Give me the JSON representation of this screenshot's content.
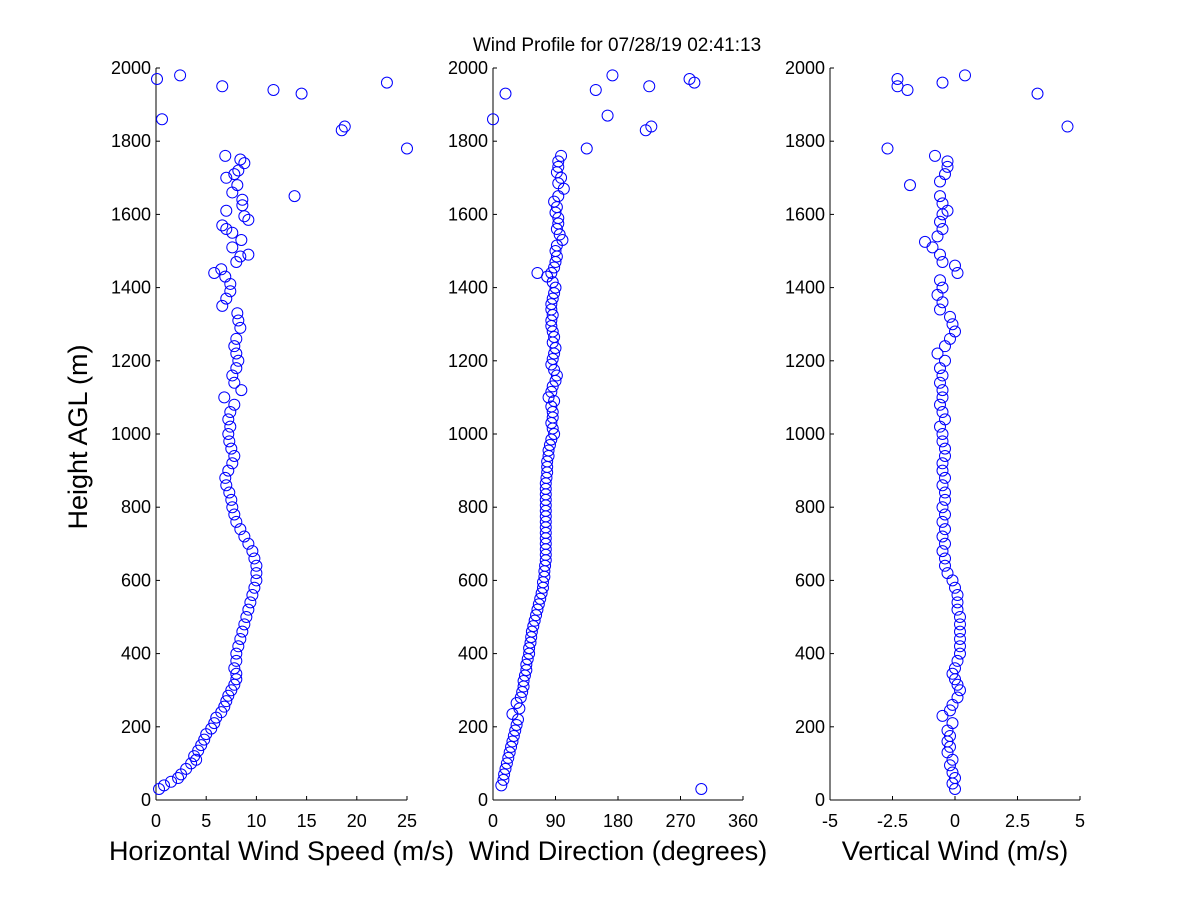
{
  "figure": {
    "title": "Wind Profile for  07/28/19 02:41:13",
    "ylabel": "Height AGL (m)"
  },
  "chart_data": [
    {
      "type": "scatter",
      "xlabel": "Horizontal Wind Speed (m/s)",
      "ylabel": "Height AGL (m)",
      "xlim": [
        0,
        25
      ],
      "ylim": [
        0,
        2000
      ],
      "xticks": [
        0,
        5,
        10,
        15,
        20,
        25
      ],
      "xtick_labels": [
        "0",
        "5",
        "10",
        "15",
        "20",
        "25"
      ],
      "yticks": [
        0,
        200,
        400,
        600,
        800,
        1000,
        1200,
        1400,
        1600,
        1800,
        2000
      ],
      "ytick_labels": [
        "0",
        "200",
        "400",
        "600",
        "800",
        "1000",
        "1200",
        "1400",
        "1600",
        "1800",
        "2000"
      ],
      "grid": false,
      "marker_color": "#0000ff",
      "points": [
        [
          0.3,
          30
        ],
        [
          0.8,
          40
        ],
        [
          1.5,
          50
        ],
        [
          2.2,
          60
        ],
        [
          2.5,
          70
        ],
        [
          3,
          85
        ],
        [
          3.5,
          100
        ],
        [
          4,
          110
        ],
        [
          3.8,
          120
        ],
        [
          4.2,
          135
        ],
        [
          4.5,
          150
        ],
        [
          4.8,
          165
        ],
        [
          5,
          180
        ],
        [
          5.5,
          195
        ],
        [
          5.8,
          210
        ],
        [
          6,
          225
        ],
        [
          6.5,
          240
        ],
        [
          6.8,
          255
        ],
        [
          7,
          270
        ],
        [
          7.2,
          285
        ],
        [
          7.5,
          300
        ],
        [
          7.8,
          315
        ],
        [
          8,
          330
        ],
        [
          8,
          345
        ],
        [
          7.8,
          360
        ],
        [
          8,
          380
        ],
        [
          8,
          400
        ],
        [
          8.2,
          420
        ],
        [
          8.4,
          440
        ],
        [
          8.6,
          460
        ],
        [
          8.8,
          480
        ],
        [
          9,
          500
        ],
        [
          9.2,
          520
        ],
        [
          9.4,
          540
        ],
        [
          9.6,
          560
        ],
        [
          9.8,
          580
        ],
        [
          10,
          600
        ],
        [
          10,
          620
        ],
        [
          10,
          640
        ],
        [
          9.8,
          660
        ],
        [
          9.6,
          680
        ],
        [
          9.2,
          700
        ],
        [
          8.8,
          720
        ],
        [
          8.4,
          740
        ],
        [
          8,
          760
        ],
        [
          7.8,
          780
        ],
        [
          7.6,
          800
        ],
        [
          7.5,
          820
        ],
        [
          7.3,
          840
        ],
        [
          7,
          860
        ],
        [
          6.9,
          880
        ],
        [
          7.2,
          900
        ],
        [
          7.6,
          920
        ],
        [
          7.8,
          940
        ],
        [
          7.5,
          960
        ],
        [
          7.3,
          980
        ],
        [
          7.2,
          1000
        ],
        [
          7.4,
          1020
        ],
        [
          7.2,
          1040
        ],
        [
          7.4,
          1060
        ],
        [
          7.8,
          1080
        ],
        [
          6.8,
          1100
        ],
        [
          8.5,
          1120
        ],
        [
          7.8,
          1140
        ],
        [
          7.6,
          1160
        ],
        [
          8,
          1180
        ],
        [
          8.2,
          1200
        ],
        [
          8,
          1220
        ],
        [
          7.8,
          1240
        ],
        [
          8,
          1260
        ],
        [
          8.4,
          1290
        ],
        [
          8.2,
          1310
        ],
        [
          8.1,
          1330
        ],
        [
          6.6,
          1350
        ],
        [
          7,
          1370
        ],
        [
          7.4,
          1390
        ],
        [
          7.4,
          1410
        ],
        [
          6.9,
          1430
        ],
        [
          5.8,
          1440
        ],
        [
          6.5,
          1450
        ],
        [
          8,
          1470
        ],
        [
          8.4,
          1485
        ],
        [
          9.2,
          1490
        ],
        [
          7.6,
          1510
        ],
        [
          8.5,
          1530
        ],
        [
          7.6,
          1550
        ],
        [
          7,
          1560
        ],
        [
          6.6,
          1570
        ],
        [
          9.2,
          1585
        ],
        [
          8.8,
          1595
        ],
        [
          7,
          1610
        ],
        [
          8.6,
          1625
        ],
        [
          8.6,
          1640
        ],
        [
          7.6,
          1660
        ],
        [
          13.8,
          1650
        ],
        [
          8.1,
          1680
        ],
        [
          7,
          1700
        ],
        [
          7.8,
          1710
        ],
        [
          8.2,
          1720
        ],
        [
          8.8,
          1740
        ],
        [
          8.4,
          1750
        ],
        [
          6.9,
          1760
        ],
        [
          25,
          1780
        ],
        [
          18.5,
          1830
        ],
        [
          18.8,
          1840
        ],
        [
          0.6,
          1860
        ],
        [
          14.5,
          1930
        ],
        [
          11.7,
          1940
        ],
        [
          6.6,
          1950
        ],
        [
          23,
          1960
        ],
        [
          0.1,
          1970
        ],
        [
          2.4,
          1980
        ]
      ]
    },
    {
      "type": "scatter",
      "xlabel": "Wind Direction (degrees)",
      "xlim": [
        0,
        360
      ],
      "ylim": [
        0,
        2000
      ],
      "xticks": [
        0,
        90,
        180,
        270,
        360
      ],
      "xtick_labels": [
        "0",
        "90",
        "180",
        "270",
        "360"
      ],
      "yticks": [
        0,
        200,
        400,
        600,
        800,
        1000,
        1200,
        1400,
        1600,
        1800,
        2000
      ],
      "ytick_labels": [
        "0",
        "200",
        "400",
        "600",
        "800",
        "1000",
        "1200",
        "1400",
        "1600",
        "1800",
        "2000"
      ],
      "grid": false,
      "marker_color": "#0000ff",
      "points": [
        [
          12,
          40
        ],
        [
          15,
          55
        ],
        [
          16,
          70
        ],
        [
          18,
          85
        ],
        [
          20,
          100
        ],
        [
          22,
          115
        ],
        [
          24,
          130
        ],
        [
          26,
          145
        ],
        [
          28,
          160
        ],
        [
          30,
          175
        ],
        [
          32,
          190
        ],
        [
          34,
          205
        ],
        [
          36,
          220
        ],
        [
          28,
          235
        ],
        [
          38,
          250
        ],
        [
          34,
          265
        ],
        [
          40,
          280
        ],
        [
          42,
          295
        ],
        [
          44,
          310
        ],
        [
          44,
          325
        ],
        [
          46,
          340
        ],
        [
          48,
          355
        ],
        [
          48,
          370
        ],
        [
          50,
          385
        ],
        [
          52,
          400
        ],
        [
          52,
          415
        ],
        [
          54,
          430
        ],
        [
          55,
          445
        ],
        [
          56,
          460
        ],
        [
          58,
          475
        ],
        [
          60,
          490
        ],
        [
          62,
          505
        ],
        [
          64,
          520
        ],
        [
          66,
          535
        ],
        [
          68,
          550
        ],
        [
          70,
          565
        ],
        [
          72,
          580
        ],
        [
          72,
          595
        ],
        [
          74,
          610
        ],
        [
          74,
          625
        ],
        [
          75,
          640
        ],
        [
          76,
          655
        ],
        [
          76,
          670
        ],
        [
          76,
          685
        ],
        [
          76,
          700
        ],
        [
          76,
          715
        ],
        [
          76,
          730
        ],
        [
          76,
          745
        ],
        [
          76,
          760
        ],
        [
          76,
          775
        ],
        [
          76,
          790
        ],
        [
          76,
          805
        ],
        [
          76,
          820
        ],
        [
          76,
          835
        ],
        [
          76,
          850
        ],
        [
          76,
          865
        ],
        [
          77,
          880
        ],
        [
          78,
          895
        ],
        [
          78,
          910
        ],
        [
          78,
          925
        ],
        [
          80,
          940
        ],
        [
          80,
          955
        ],
        [
          82,
          970
        ],
        [
          84,
          985
        ],
        [
          88,
          1000
        ],
        [
          86,
          1015
        ],
        [
          84,
          1030
        ],
        [
          86,
          1045
        ],
        [
          86,
          1060
        ],
        [
          84,
          1075
        ],
        [
          88,
          1090
        ],
        [
          80,
          1100
        ],
        [
          84,
          1115
        ],
        [
          86,
          1130
        ],
        [
          90,
          1145
        ],
        [
          92,
          1160
        ],
        [
          88,
          1175
        ],
        [
          84,
          1190
        ],
        [
          86,
          1205
        ],
        [
          88,
          1220
        ],
        [
          90,
          1235
        ],
        [
          86,
          1250
        ],
        [
          88,
          1265
        ],
        [
          86,
          1280
        ],
        [
          84,
          1295
        ],
        [
          84,
          1310
        ],
        [
          86,
          1325
        ],
        [
          84,
          1340
        ],
        [
          84,
          1355
        ],
        [
          86,
          1370
        ],
        [
          88,
          1385
        ],
        [
          90,
          1400
        ],
        [
          86,
          1415
        ],
        [
          78,
          1430
        ],
        [
          64,
          1440
        ],
        [
          84,
          1440
        ],
        [
          88,
          1455
        ],
        [
          90,
          1470
        ],
        [
          92,
          1485
        ],
        [
          90,
          1500
        ],
        [
          92,
          1515
        ],
        [
          100,
          1530
        ],
        [
          96,
          1545
        ],
        [
          92,
          1560
        ],
        [
          94,
          1575
        ],
        [
          94,
          1590
        ],
        [
          90,
          1605
        ],
        [
          92,
          1620
        ],
        [
          88,
          1635
        ],
        [
          94,
          1650
        ],
        [
          102,
          1670
        ],
        [
          94,
          1685
        ],
        [
          98,
          1700
        ],
        [
          92,
          1715
        ],
        [
          94,
          1730
        ],
        [
          94,
          1745
        ],
        [
          98,
          1760
        ],
        [
          135,
          1780
        ],
        [
          0,
          1860
        ],
        [
          165,
          1870
        ],
        [
          220,
          1830
        ],
        [
          228,
          1840
        ],
        [
          18,
          1930
        ],
        [
          148,
          1940
        ],
        [
          225,
          1950
        ],
        [
          283,
          1970
        ],
        [
          290,
          1960
        ],
        [
          172,
          1980
        ],
        [
          300,
          30
        ]
      ]
    },
    {
      "type": "scatter",
      "xlabel": "Vertical Wind (m/s)",
      "xlim": [
        -5,
        5
      ],
      "ylim": [
        0,
        2000
      ],
      "xticks": [
        -5,
        -2.5,
        0,
        2.5,
        5
      ],
      "xtick_labels": [
        "-5",
        "-2.5",
        "0",
        "2.5",
        "5"
      ],
      "yticks": [
        0,
        200,
        400,
        600,
        800,
        1000,
        1200,
        1400,
        1600,
        1800,
        2000
      ],
      "ytick_labels": [
        "0",
        "200",
        "400",
        "600",
        "800",
        "1000",
        "1200",
        "1400",
        "1600",
        "1800",
        "2000"
      ],
      "grid": false,
      "marker_color": "#0000ff",
      "points": [
        [
          0,
          30
        ],
        [
          -0.1,
          45
        ],
        [
          0,
          60
        ],
        [
          -0.1,
          75
        ],
        [
          -0.2,
          95
        ],
        [
          -0.1,
          110
        ],
        [
          -0.3,
          130
        ],
        [
          -0.2,
          145
        ],
        [
          -0.3,
          160
        ],
        [
          -0.2,
          175
        ],
        [
          -0.3,
          190
        ],
        [
          -0.1,
          210
        ],
        [
          -0.5,
          230
        ],
        [
          -0.2,
          245
        ],
        [
          -0.1,
          260
        ],
        [
          0.1,
          280
        ],
        [
          0.2,
          300
        ],
        [
          0.1,
          315
        ],
        [
          0,
          330
        ],
        [
          -0.1,
          345
        ],
        [
          0,
          360
        ],
        [
          0.1,
          380
        ],
        [
          0.2,
          400
        ],
        [
          0.2,
          420
        ],
        [
          0.2,
          440
        ],
        [
          0.2,
          460
        ],
        [
          0.2,
          480
        ],
        [
          0.2,
          500
        ],
        [
          0.1,
          520
        ],
        [
          0.1,
          540
        ],
        [
          0.1,
          560
        ],
        [
          0,
          580
        ],
        [
          -0.1,
          600
        ],
        [
          -0.3,
          620
        ],
        [
          -0.4,
          640
        ],
        [
          -0.4,
          660
        ],
        [
          -0.5,
          680
        ],
        [
          -0.4,
          700
        ],
        [
          -0.5,
          720
        ],
        [
          -0.4,
          740
        ],
        [
          -0.5,
          760
        ],
        [
          -0.4,
          780
        ],
        [
          -0.5,
          800
        ],
        [
          -0.4,
          820
        ],
        [
          -0.4,
          840
        ],
        [
          -0.5,
          860
        ],
        [
          -0.4,
          880
        ],
        [
          -0.5,
          900
        ],
        [
          -0.5,
          920
        ],
        [
          -0.4,
          940
        ],
        [
          -0.4,
          960
        ],
        [
          -0.5,
          980
        ],
        [
          -0.5,
          1000
        ],
        [
          -0.6,
          1020
        ],
        [
          -0.4,
          1040
        ],
        [
          -0.5,
          1060
        ],
        [
          -0.6,
          1080
        ],
        [
          -0.5,
          1100
        ],
        [
          -0.5,
          1120
        ],
        [
          -0.6,
          1140
        ],
        [
          -0.5,
          1160
        ],
        [
          -0.6,
          1180
        ],
        [
          -0.4,
          1200
        ],
        [
          -0.7,
          1220
        ],
        [
          -0.4,
          1240
        ],
        [
          -0.2,
          1260
        ],
        [
          0,
          1280
        ],
        [
          -0.1,
          1300
        ],
        [
          -0.2,
          1320
        ],
        [
          -0.6,
          1340
        ],
        [
          -0.5,
          1360
        ],
        [
          -0.7,
          1380
        ],
        [
          -0.5,
          1400
        ],
        [
          -0.6,
          1420
        ],
        [
          0.1,
          1440
        ],
        [
          0,
          1460
        ],
        [
          -0.5,
          1470
        ],
        [
          -0.6,
          1490
        ],
        [
          -0.9,
          1510
        ],
        [
          -1.2,
          1525
        ],
        [
          -0.7,
          1540
        ],
        [
          -0.5,
          1560
        ],
        [
          -0.6,
          1580
        ],
        [
          -0.5,
          1600
        ],
        [
          -0.3,
          1610
        ],
        [
          -0.5,
          1630
        ],
        [
          -0.6,
          1650
        ],
        [
          -1.8,
          1680
        ],
        [
          -0.6,
          1690
        ],
        [
          -0.4,
          1710
        ],
        [
          -0.3,
          1730
        ],
        [
          -0.3,
          1745
        ],
        [
          -0.8,
          1760
        ],
        [
          -2.7,
          1780
        ],
        [
          4.5,
          1840
        ],
        [
          3.3,
          1930
        ],
        [
          -1.9,
          1940
        ],
        [
          -2.3,
          1950
        ],
        [
          -0.5,
          1960
        ],
        [
          -2.3,
          1970
        ],
        [
          0.4,
          1980
        ]
      ]
    }
  ]
}
